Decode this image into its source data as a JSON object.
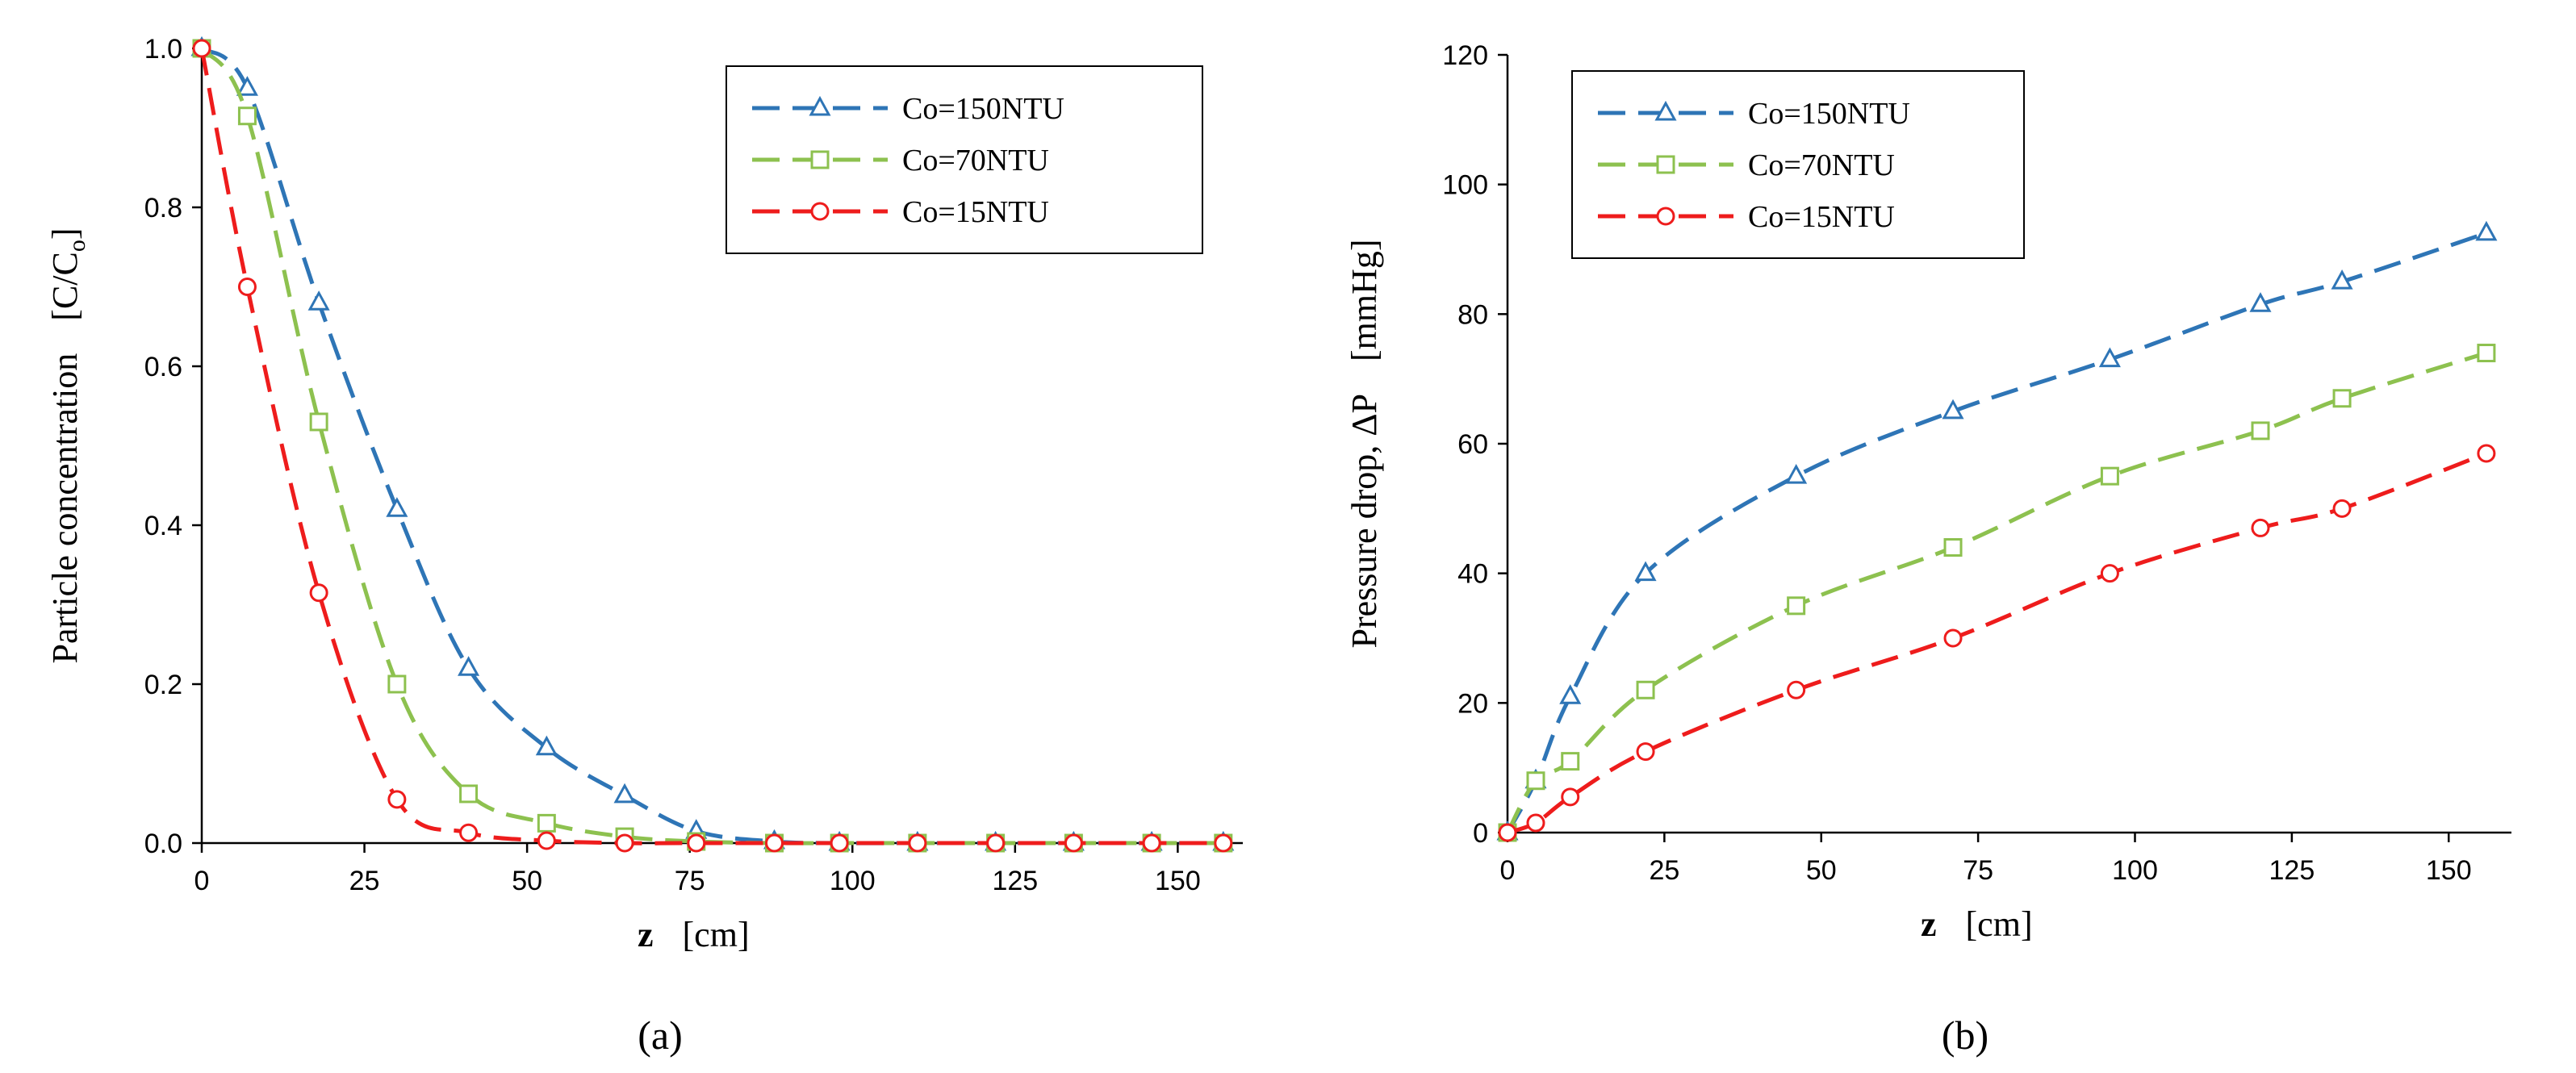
{
  "chart_data": [
    {
      "type": "line",
      "panel_label": "(a)",
      "xlabel_bold": "z",
      "xlabel_unit": "[cm]",
      "ylabel": "Particle concentration",
      "ylabel_unit": "[C/C",
      "ylabel_unit_sub": "o",
      "ylabel_unit_end": "]",
      "xlim": [
        0,
        160
      ],
      "ylim": [
        0,
        1.0
      ],
      "x_ticks": [
        "0",
        "25",
        "50",
        "75",
        "100",
        "125",
        "150"
      ],
      "x_tick_values": [
        0,
        25,
        50,
        75,
        100,
        125,
        150
      ],
      "y_ticks": [
        "0.0",
        "0.2",
        "0.4",
        "0.6",
        "0.8",
        "1.0"
      ],
      "y_tick_values": [
        0,
        0.2,
        0.4,
        0.6,
        0.8,
        1.0
      ],
      "legend_position": "top-right",
      "series": [
        {
          "name": "Co=150NTU",
          "color": "#2e75b6",
          "marker": "triangle",
          "x": [
            0,
            7,
            18,
            30,
            41,
            53,
            65,
            76,
            88,
            98,
            110,
            122,
            134,
            146,
            157
          ],
          "y": [
            1.0,
            0.95,
            0.68,
            0.42,
            0.22,
            0.12,
            0.06,
            0.015,
            0.002,
            0,
            0,
            0,
            0,
            0,
            0
          ]
        },
        {
          "name": "Co=70NTU",
          "color": "#8dc14f",
          "marker": "square",
          "x": [
            0,
            7,
            18,
            30,
            41,
            53,
            65,
            76,
            88,
            98,
            110,
            122,
            134,
            146,
            157
          ],
          "y": [
            1.0,
            0.915,
            0.53,
            0.2,
            0.062,
            0.025,
            0.008,
            0.002,
            0,
            0,
            0,
            0,
            0,
            0,
            0
          ]
        },
        {
          "name": "Co=15NTU",
          "color": "#ee1c1c",
          "marker": "circle",
          "x": [
            0,
            7,
            18,
            30,
            41,
            53,
            65,
            76,
            88,
            98,
            110,
            122,
            134,
            146,
            157
          ],
          "y": [
            1.0,
            0.7,
            0.315,
            0.055,
            0.013,
            0.003,
            0,
            0,
            0,
            0,
            0,
            0,
            0,
            0,
            0
          ]
        }
      ]
    },
    {
      "type": "line",
      "panel_label": "(b)",
      "xlabel_bold": "z",
      "xlabel_unit": "[cm]",
      "ylabel": "Pressure drop, ΔP",
      "ylabel_unit": "[mmHg]",
      "xlim": [
        0,
        160
      ],
      "ylim": [
        0,
        120
      ],
      "x_ticks": [
        "0",
        "25",
        "50",
        "75",
        "100",
        "125",
        "150"
      ],
      "x_tick_values": [
        0,
        25,
        50,
        75,
        100,
        125,
        150
      ],
      "y_ticks": [
        "0",
        "20",
        "40",
        "60",
        "80",
        "100",
        "120"
      ],
      "y_tick_values": [
        0,
        20,
        40,
        60,
        80,
        100,
        120
      ],
      "legend_position": "top-left",
      "series": [
        {
          "name": "Co=150NTU",
          "color": "#2e75b6",
          "marker": "triangle",
          "x": [
            0,
            4.5,
            10,
            22,
            46,
            71,
            96,
            120,
            133,
            156
          ],
          "y": [
            0,
            8,
            21,
            40,
            55,
            65,
            73,
            81.5,
            85,
            92.5
          ]
        },
        {
          "name": "Co=70NTU",
          "color": "#8dc14f",
          "marker": "square",
          "x": [
            0,
            4.5,
            10,
            22,
            46,
            71,
            96,
            120,
            133,
            156
          ],
          "y": [
            0,
            8,
            11,
            22,
            35,
            44,
            55,
            62,
            67,
            74
          ]
        },
        {
          "name": "Co=15NTU",
          "color": "#ee1c1c",
          "marker": "circle",
          "x": [
            0,
            4.5,
            10,
            22,
            46,
            71,
            96,
            120,
            133,
            156
          ],
          "y": [
            0,
            1.5,
            5.5,
            12.5,
            22,
            30,
            40,
            47,
            50,
            58.5
          ]
        }
      ]
    }
  ]
}
